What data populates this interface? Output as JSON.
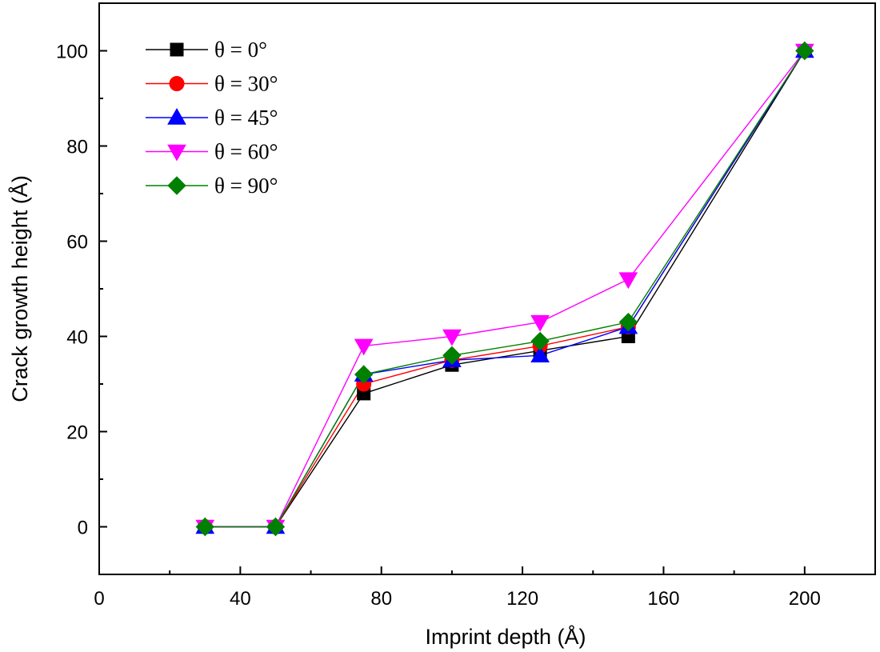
{
  "chart_data": {
    "type": "line",
    "title": "",
    "xlabel": "Imprint depth (Å)",
    "ylabel": "Crack growth height (Å)",
    "xlim": [
      0,
      220
    ],
    "ylim": [
      -10,
      110
    ],
    "x_ticks": [
      0,
      40,
      80,
      120,
      160,
      200
    ],
    "x_minor_ticks": [
      20,
      60,
      100,
      140,
      180
    ],
    "y_ticks": [
      0,
      20,
      40,
      60,
      80,
      100
    ],
    "y_minor_ticks": [
      10,
      30,
      50,
      70,
      90
    ],
    "legend_position": "top-left",
    "x": [
      30,
      50,
      75,
      100,
      125,
      150,
      200
    ],
    "series": [
      {
        "name": "θ = 0°",
        "color": "#000000",
        "marker": "square",
        "values": [
          0,
          0,
          28,
          34,
          37,
          40,
          100
        ]
      },
      {
        "name": "θ = 30°",
        "color": "#ff0000",
        "marker": "circle",
        "values": [
          0,
          0,
          30,
          35,
          38,
          42,
          100
        ]
      },
      {
        "name": "θ = 45°",
        "color": "#0000ff",
        "marker": "triangle-up",
        "values": [
          0,
          0,
          32,
          35,
          36,
          42,
          100
        ]
      },
      {
        "name": "θ = 60°",
        "color": "#ff00ff",
        "marker": "triangle-down",
        "values": [
          0,
          0,
          38,
          40,
          43,
          52,
          100
        ]
      },
      {
        "name": "θ = 90°",
        "color": "#008000",
        "marker": "diamond",
        "values": [
          0,
          0,
          32,
          36,
          39,
          43,
          100
        ]
      }
    ]
  }
}
